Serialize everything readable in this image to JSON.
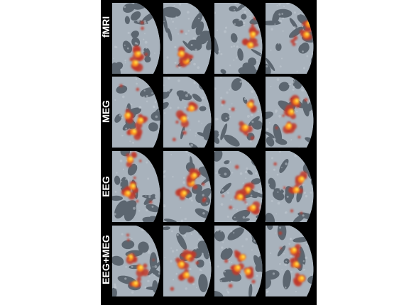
{
  "figure": {
    "rows": [
      {
        "label": "fMRI"
      },
      {
        "label": "MEG"
      },
      {
        "label": "EEG"
      },
      {
        "label": "EEG+MEG"
      }
    ],
    "columns": 4,
    "colors": {
      "background": "#000000",
      "gyri": "#a8b2bc",
      "sulci": "#5c6670",
      "activation_low": "#c0392b",
      "activation_mid": "#ff8c1a",
      "activation_high": "#ffe14a",
      "label": "#ffffff"
    }
  }
}
